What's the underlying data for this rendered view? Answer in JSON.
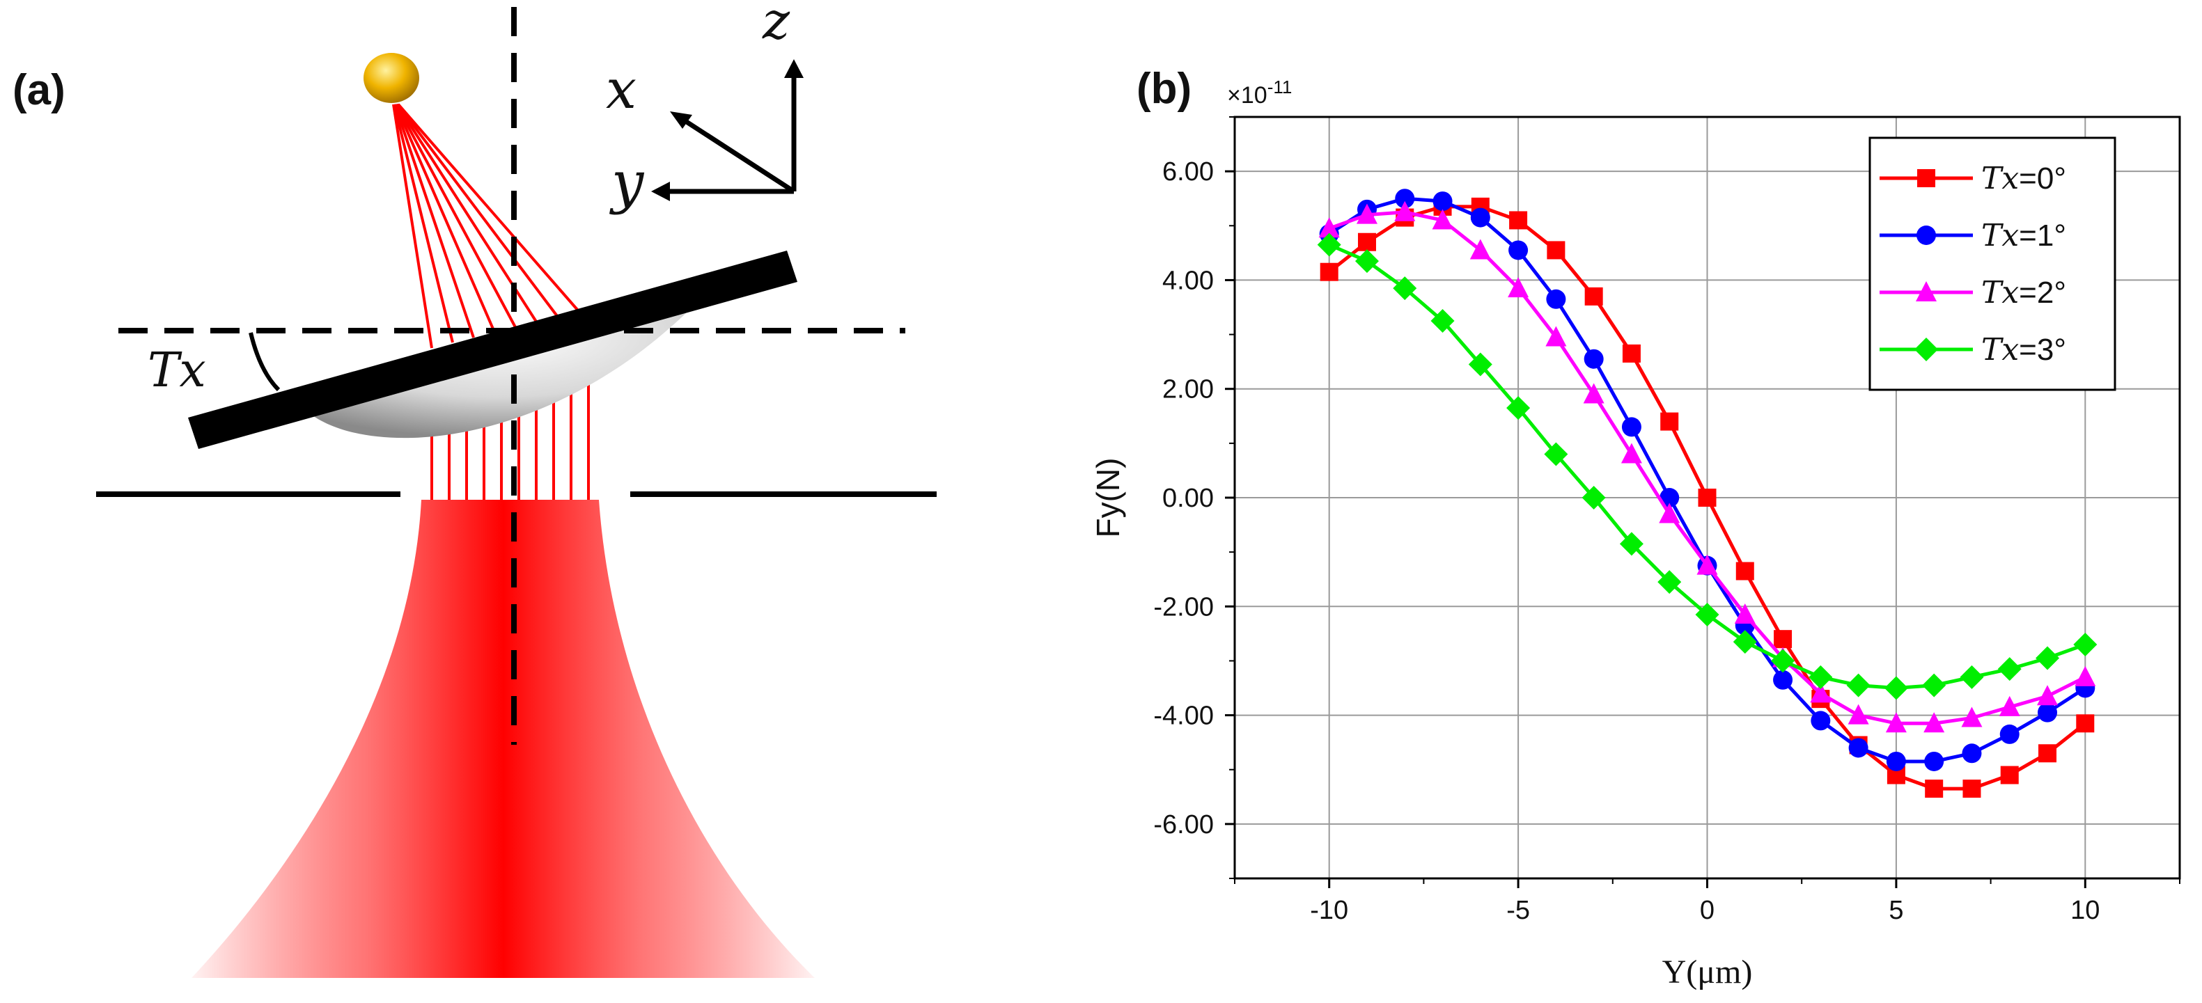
{
  "panel_a": {
    "label": "(a)",
    "axes": {
      "z": "z",
      "x": "x",
      "y": "y"
    },
    "tilt_label": "Tx",
    "colors": {
      "beam": "#ff0000",
      "sphere": "#e6a800",
      "plate": "#000000"
    }
  },
  "panel_b": {
    "label": "(b)",
    "exponent_base": "×10",
    "exponent_power": "-11"
  },
  "chart_data": {
    "type": "line",
    "title": "",
    "xlabel": "Y(μm)",
    "ylabel": "Fy(N)",
    "y_scale_note": "×10^-11",
    "xlim": [
      -12.5,
      12.5
    ],
    "ylim": [
      -7,
      7
    ],
    "xticks": [
      -10,
      -5,
      0,
      5,
      10
    ],
    "yticks": [
      -6,
      -4,
      -2,
      0,
      2,
      4,
      6
    ],
    "ytick_labels": [
      "-6.00",
      "-4.00",
      "-2.00",
      "0.00",
      "2.00",
      "4.00",
      "6.00"
    ],
    "xtick_labels": [
      "-10",
      "-5",
      "0",
      "5",
      "10"
    ],
    "grid": true,
    "legend_position": "top-right",
    "x": [
      -10,
      -9,
      -8,
      -7,
      -6,
      -5,
      -4,
      -3,
      -2,
      -1,
      0,
      1,
      2,
      3,
      4,
      5,
      6,
      7,
      8,
      9,
      10
    ],
    "series": [
      {
        "name_var": "Tx",
        "name_value": "=0°",
        "color": "#ff0000",
        "marker": "square",
        "values": [
          4.15,
          4.7,
          5.15,
          5.35,
          5.35,
          5.1,
          4.55,
          3.7,
          2.65,
          1.4,
          0.0,
          -1.35,
          -2.6,
          -3.7,
          -4.55,
          -5.1,
          -5.35,
          -5.35,
          -5.1,
          -4.7,
          -4.15
        ]
      },
      {
        "name_var": "Tx",
        "name_value": "=1°",
        "color": "#0000ff",
        "marker": "circle",
        "values": [
          4.85,
          5.3,
          5.5,
          5.45,
          5.15,
          4.55,
          3.65,
          2.55,
          1.3,
          0.0,
          -1.25,
          -2.35,
          -3.35,
          -4.1,
          -4.6,
          -4.85,
          -4.85,
          -4.7,
          -4.35,
          -3.95,
          -3.5
        ]
      },
      {
        "name_var": "Tx",
        "name_value": "=2°",
        "color": "#ff00ff",
        "marker": "triangle",
        "values": [
          4.95,
          5.2,
          5.25,
          5.1,
          4.55,
          3.85,
          2.95,
          1.9,
          0.8,
          -0.3,
          -1.25,
          -2.15,
          -2.95,
          -3.6,
          -4.0,
          -4.15,
          -4.15,
          -4.05,
          -3.85,
          -3.65,
          -3.3
        ]
      },
      {
        "name_var": "Tx",
        "name_value": "=3°",
        "color": "#00ee00",
        "marker": "diamond",
        "values": [
          4.65,
          4.35,
          3.85,
          3.25,
          2.45,
          1.65,
          0.8,
          0.0,
          -0.85,
          -1.55,
          -2.15,
          -2.65,
          -3.0,
          -3.3,
          -3.45,
          -3.5,
          -3.45,
          -3.3,
          -3.15,
          -2.95,
          -2.7
        ]
      }
    ]
  }
}
